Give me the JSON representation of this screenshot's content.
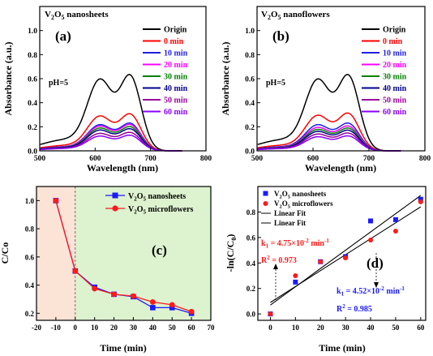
{
  "colors": {
    "Origin": "#000000",
    "0 min": "#ff0000",
    "10 min": "#1f1fe6",
    "20 min": "#ff00ff",
    "30 min": "#008000",
    "40 min": "#00008b",
    "50 min": "#990099",
    "60 min": "#8b00ff",
    "nanosheets": "#1a1aff",
    "microflowers": "#ff1a1a",
    "shade_left": "#fbe3d6",
    "shade_right": "#ddf2cf"
  },
  "chart_data": [
    {
      "id": "a",
      "type": "line",
      "panel_label": "(a)",
      "title": "V2O5 nanosheets",
      "annotation": "pH=5",
      "xlabel": "Wavelength (nm)",
      "ylabel": "Absorbance (a.u.)",
      "xlim": [
        500,
        800
      ],
      "ylim": [
        0,
        1.2
      ],
      "xticks": [
        "500",
        "600",
        "700",
        "800"
      ],
      "yticks": [
        "0.0",
        "0.2",
        "0.4",
        "0.6",
        "0.8",
        "1.0"
      ],
      "legend": [
        "Origin",
        "0 min",
        "10 min",
        "20 min",
        "30 min",
        "40 min",
        "50 min",
        "60 min"
      ],
      "legend_position": "right",
      "series": [
        {
          "name": "Origin",
          "peak": 1.07
        },
        {
          "name": "0 min",
          "peak": 0.52
        },
        {
          "name": "10 min",
          "peak": 0.39
        },
        {
          "name": "20 min",
          "peak": 0.37
        },
        {
          "name": "30 min",
          "peak": 0.34
        },
        {
          "name": "40 min",
          "peak": 0.31
        },
        {
          "name": "50 min",
          "peak": 0.26
        },
        {
          "name": "60 min",
          "peak": 0.22
        }
      ]
    },
    {
      "id": "b",
      "type": "line",
      "panel_label": "(b)",
      "title": "V2O5 nanoflowers",
      "annotation": "pH=5",
      "xlabel": "Wavelength (nm)",
      "ylabel": "Absorbance (a.u.)",
      "xlim": [
        500,
        800
      ],
      "ylim": [
        0,
        1.2
      ],
      "xticks": [
        "500",
        "600",
        "700",
        "800"
      ],
      "yticks": [
        "0.0",
        "0.2",
        "0.4",
        "0.6",
        "0.8",
        "1.0"
      ],
      "legend": [
        "Origin",
        "0 min",
        "10 min",
        "20 min",
        "30 min",
        "40 min",
        "50 min",
        "60 min"
      ],
      "legend_position": "right",
      "series": [
        {
          "name": "Origin",
          "peak": 1.07
        },
        {
          "name": "0 min",
          "peak": 0.53
        },
        {
          "name": "10 min",
          "peak": 0.39
        },
        {
          "name": "20 min",
          "peak": 0.35
        },
        {
          "name": "30 min",
          "peak": 0.32
        },
        {
          "name": "40 min",
          "peak": 0.29
        },
        {
          "name": "50 min",
          "peak": 0.25
        },
        {
          "name": "60 min",
          "peak": 0.21
        }
      ]
    },
    {
      "id": "c",
      "type": "line",
      "panel_label": "(c)",
      "xlabel": "Time (min)",
      "ylabel": "C/Co",
      "xlim": [
        -20,
        70
      ],
      "ylim": [
        0.15,
        1.1
      ],
      "xticks": [
        "-20",
        "-10",
        "0",
        "10",
        "20",
        "30",
        "40",
        "50",
        "60",
        "70"
      ],
      "yticks": [
        "0.2",
        "0.4",
        "0.6",
        "0.8",
        "1.0"
      ],
      "legend_position": "top-right",
      "x": [
        -10,
        0,
        10,
        20,
        30,
        40,
        50,
        60
      ],
      "series": [
        {
          "name": "V2O5 nanosheets",
          "marker": "square",
          "values": [
            1.0,
            0.5,
            0.385,
            0.335,
            0.318,
            0.24,
            0.24,
            0.2
          ]
        },
        {
          "name": "V2O5 microflowers",
          "marker": "circle",
          "values": [
            1.0,
            0.5,
            0.375,
            0.335,
            0.322,
            0.28,
            0.26,
            0.212
          ]
        }
      ]
    },
    {
      "id": "d",
      "type": "scatter",
      "panel_label": "(d)",
      "xlabel": "Time (min)",
      "ylabel": "-ln(C/C0)",
      "xlim": [
        -5,
        62
      ],
      "ylim": [
        -0.05,
        1.0
      ],
      "xticks": [
        "0",
        "10",
        "20",
        "30",
        "40",
        "50",
        "60"
      ],
      "yticks": [
        "0.0",
        "0.2",
        "0.4",
        "0.6",
        "0.8"
      ],
      "legend": [
        "V2O5 nanosheets",
        "V2O5 microflowers",
        "Linear Fit",
        "Linear Fit"
      ],
      "legend_position": "top-left",
      "x": [
        0,
        10,
        20,
        30,
        40,
        50,
        60
      ],
      "series": [
        {
          "name": "V2O5 nanosheets",
          "marker": "square",
          "values": [
            0.0,
            0.25,
            0.41,
            0.45,
            0.73,
            0.74,
            0.9
          ]
        },
        {
          "name": "V2O5 microflowers",
          "marker": "circle",
          "values": [
            0.0,
            0.3,
            0.41,
            0.44,
            0.58,
            0.65,
            0.88
          ]
        }
      ],
      "fits": [
        {
          "name": "Linear Fit",
          "x0": 0,
          "y0": 0.07,
          "x1": 60,
          "y1": 0.93
        },
        {
          "name": "Linear Fit",
          "x0": 0,
          "y0": 0.09,
          "x1": 60,
          "y1": 0.84
        }
      ],
      "annotations": {
        "k_red": "k1 = 4.75×10-2 min-1",
        "r2_red": "R2 = 0.973",
        "k_blue": "k1 = 4.52×10-2 min-1",
        "r2_blue": "R2 = 0.985"
      }
    }
  ]
}
